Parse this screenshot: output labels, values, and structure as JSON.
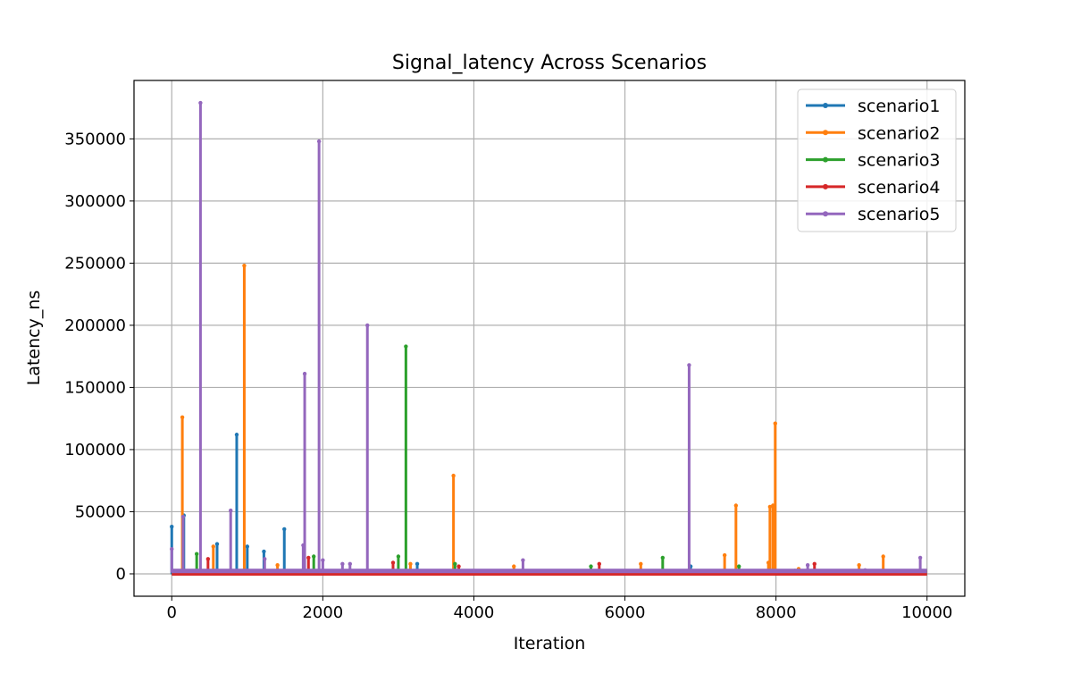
{
  "chart_data": {
    "type": "line",
    "title": "Signal_latency Across Scenarios",
    "xlabel": "Iteration",
    "ylabel": "Latency_ns",
    "xlim": [
      -500,
      10500
    ],
    "ylim": [
      -18000,
      397000
    ],
    "xticks": [
      0,
      2000,
      4000,
      6000,
      8000,
      10000
    ],
    "yticks": [
      0,
      50000,
      100000,
      150000,
      200000,
      250000,
      300000,
      350000
    ],
    "grid": true,
    "legend_position": "top-right",
    "series": [
      {
        "name": "scenario1",
        "color": "#1f77b4",
        "baseline": 500,
        "spikes": [
          [
            0,
            38000
          ],
          [
            160,
            47000
          ],
          [
            600,
            24000
          ],
          [
            860,
            112000
          ],
          [
            1000,
            22000
          ],
          [
            1220,
            18000
          ],
          [
            1490,
            36000
          ],
          [
            3250,
            8000
          ],
          [
            6870,
            6000
          ],
          [
            8150,
            2000
          ],
          [
            8250,
            2500
          ],
          [
            9200,
            1500
          ],
          [
            9950,
            1000
          ]
        ]
      },
      {
        "name": "scenario2",
        "color": "#ff7f0e",
        "baseline": 1500,
        "spikes": [
          [
            140,
            126000
          ],
          [
            550,
            22000
          ],
          [
            960,
            248000
          ],
          [
            1400,
            7000
          ],
          [
            3160,
            8000
          ],
          [
            3730,
            79000
          ],
          [
            4530,
            6000
          ],
          [
            6210,
            8000
          ],
          [
            7320,
            15000
          ],
          [
            7470,
            55000
          ],
          [
            7900,
            9000
          ],
          [
            7920,
            54000
          ],
          [
            7960,
            55000
          ],
          [
            7990,
            121000
          ],
          [
            8300,
            4000
          ],
          [
            9100,
            7000
          ],
          [
            9420,
            14000
          ],
          [
            9750,
            2000
          ]
        ]
      },
      {
        "name": "scenario3",
        "color": "#2ca02c",
        "baseline": 1000,
        "spikes": [
          [
            330,
            16000
          ],
          [
            1880,
            14000
          ],
          [
            3000,
            14000
          ],
          [
            3100,
            183000
          ],
          [
            3750,
            8000
          ],
          [
            5550,
            6000
          ],
          [
            6500,
            13000
          ],
          [
            7510,
            6000
          ]
        ]
      },
      {
        "name": "scenario4",
        "color": "#d62728",
        "baseline": 0,
        "spikes": [
          [
            480,
            12000
          ],
          [
            1810,
            13000
          ],
          [
            2930,
            9000
          ],
          [
            3800,
            6000
          ],
          [
            5660,
            8000
          ],
          [
            8510,
            8000
          ]
        ]
      },
      {
        "name": "scenario5",
        "color": "#9467bd",
        "baseline": 2000,
        "spikes": [
          [
            0,
            20000
          ],
          [
            150,
            46000
          ],
          [
            380,
            379000
          ],
          [
            780,
            51000
          ],
          [
            1230,
            12000
          ],
          [
            1740,
            23000
          ],
          [
            1760,
            161000
          ],
          [
            1950,
            348000
          ],
          [
            2000,
            11000
          ],
          [
            2260,
            8000
          ],
          [
            2360,
            8000
          ],
          [
            2590,
            200000
          ],
          [
            4650,
            11000
          ],
          [
            6850,
            168000
          ],
          [
            8420,
            7000
          ],
          [
            9180,
            3000
          ],
          [
            9910,
            13000
          ]
        ]
      }
    ]
  }
}
